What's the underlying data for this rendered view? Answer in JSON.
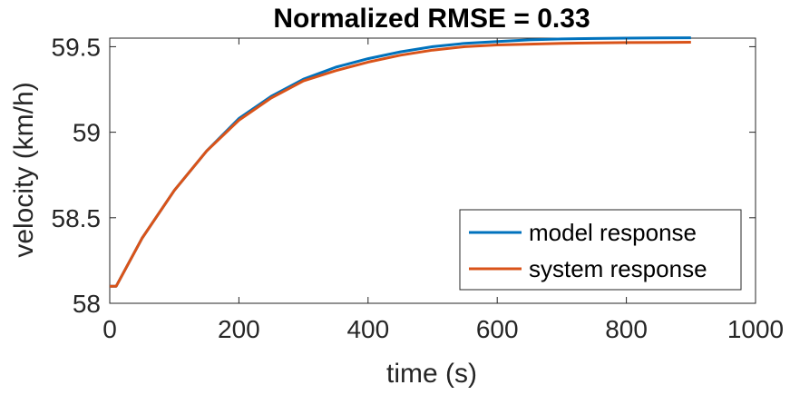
{
  "chart_data": {
    "type": "line",
    "title": "Normalized RMSE = 0.33",
    "xlabel": "time (s)",
    "ylabel": "velocity (km/h)",
    "xlim": [
      0,
      1000
    ],
    "ylim": [
      58,
      59.55
    ],
    "xticks": [
      0,
      200,
      400,
      600,
      800,
      1000
    ],
    "yticks": [
      58,
      58.5,
      59,
      59.5
    ],
    "xtick_labels": [
      "0",
      "200",
      "400",
      "600",
      "800",
      "1000"
    ],
    "ytick_labels": [
      "58",
      "58.5",
      "59",
      "59.5"
    ],
    "grid": false,
    "legend_position": "bottom-right",
    "series": [
      {
        "name": "model response",
        "color": "#0072BD",
        "x": [
          0,
          10,
          50,
          100,
          150,
          200,
          250,
          300,
          350,
          400,
          450,
          500,
          550,
          600,
          650,
          700,
          750,
          800,
          850,
          900
        ],
        "y": [
          58.1,
          58.1,
          58.38,
          58.66,
          58.89,
          59.08,
          59.21,
          59.31,
          59.38,
          59.43,
          59.47,
          59.5,
          59.52,
          59.53,
          59.54,
          59.545,
          59.548,
          59.55,
          59.551,
          59.552
        ]
      },
      {
        "name": "system response",
        "color": "#D95319",
        "x": [
          0,
          10,
          50,
          100,
          150,
          200,
          250,
          300,
          350,
          400,
          450,
          500,
          550,
          600,
          650,
          700,
          750,
          800,
          850,
          900
        ],
        "y": [
          58.1,
          58.1,
          58.38,
          58.66,
          58.89,
          59.07,
          59.2,
          59.3,
          59.36,
          59.41,
          59.45,
          59.48,
          59.5,
          59.51,
          59.515,
          59.52,
          59.522,
          59.524,
          59.525,
          59.526
        ]
      }
    ]
  }
}
